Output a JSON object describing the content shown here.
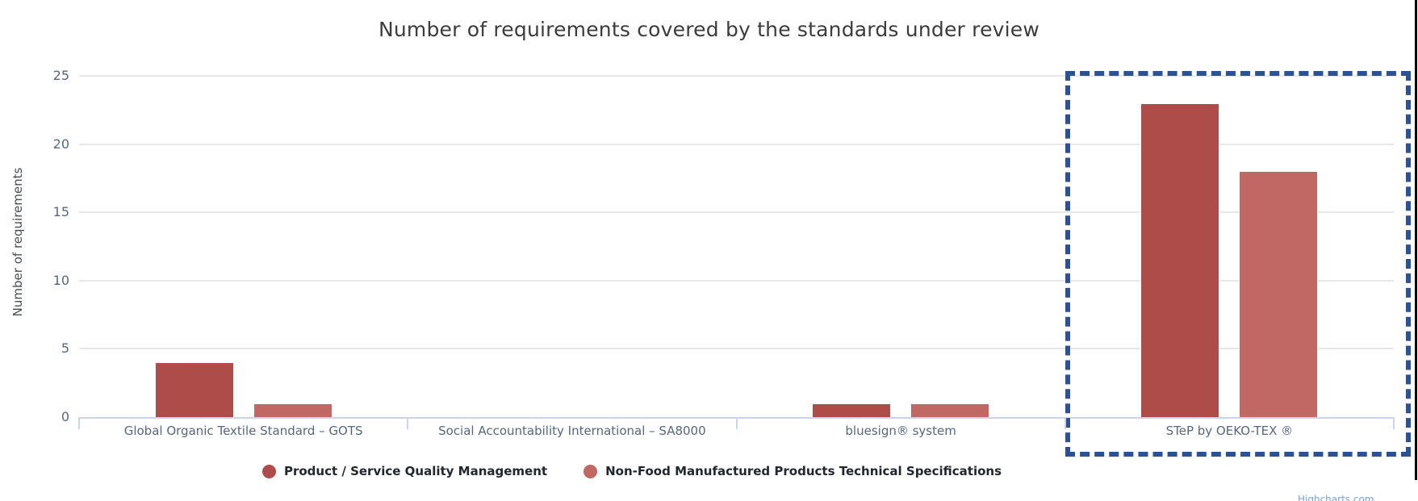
{
  "chart_data": {
    "type": "bar",
    "title": "Number of requirements covered by the standards under review",
    "xlabel": "",
    "ylabel": "Number of requirements",
    "ylim": [
      0,
      25
    ],
    "yticks": [
      0,
      5,
      10,
      15,
      20,
      25
    ],
    "grid": true,
    "legend_position": "bottom-center",
    "categories": [
      "Global Organic Textile Standard – GOTS",
      "Social Accountability International – SA8000",
      "bluesign® system",
      "STeP by OEKO-TEX ®"
    ],
    "series": [
      {
        "name": "Product / Service Quality Management",
        "color": "#ae4c49",
        "values": [
          4,
          0,
          1,
          23
        ]
      },
      {
        "name": "Non-Food Manufactured Products Technical Specifications",
        "color": "#c16764",
        "values": [
          1,
          0,
          1,
          18
        ]
      }
    ],
    "annotations": [
      {
        "type": "highlight-box",
        "target_category": "STeP by OEKO-TEX ®",
        "style": "dashed",
        "color": "#2d5291"
      }
    ],
    "credits": "Highcharts.com"
  },
  "colors": {
    "grid": "#e8e8e8",
    "axis_line": "#ccd6eb",
    "tick_label": "#58677f",
    "title": "#3c3c3c",
    "highlight": "#2d5291"
  }
}
